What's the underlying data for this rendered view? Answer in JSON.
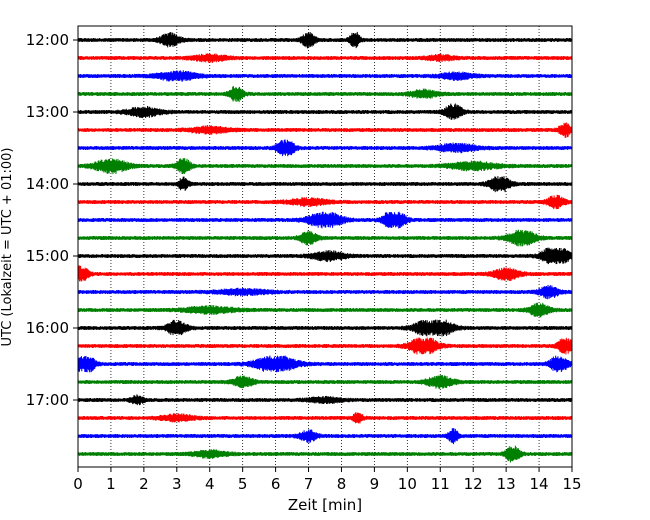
{
  "chart_data": {
    "type": "line",
    "subtype": "helicorder-seismogram",
    "xlabel": "Zeit  [min]",
    "ylabel": "UTC (Lokalzeit = UTC + 01:00)",
    "xlim": [
      0,
      15
    ],
    "x_ticks": [
      0,
      1,
      2,
      3,
      4,
      5,
      6,
      7,
      8,
      9,
      10,
      11,
      12,
      13,
      14,
      15
    ],
    "x_grid": "dotted vertical lines at each minute",
    "y_ticks": [
      "12:00",
      "13:00",
      "14:00",
      "15:00",
      "16:00",
      "17:00"
    ],
    "trace_interval_minutes": 15,
    "trace_colors": [
      "#000000",
      "#ff0000",
      "#0000ff",
      "#008000"
    ],
    "traces": [
      {
        "start": "12:00",
        "color": "#000000",
        "bursts": [
          [
            2.8,
            1.0,
            0.6
          ],
          [
            7.0,
            1.1,
            0.4
          ],
          [
            8.4,
            1.4,
            0.3
          ]
        ]
      },
      {
        "start": "12:15",
        "color": "#ff0000",
        "bursts": [
          [
            4.0,
            0.5,
            1.0
          ],
          [
            11.0,
            0.4,
            0.8
          ]
        ]
      },
      {
        "start": "12:30",
        "color": "#0000ff",
        "bursts": [
          [
            3.0,
            0.7,
            1.2
          ],
          [
            11.5,
            0.5,
            1.0
          ]
        ]
      },
      {
        "start": "12:45",
        "color": "#008000",
        "bursts": [
          [
            4.8,
            1.3,
            0.4
          ],
          [
            10.5,
            0.6,
            0.8
          ]
        ]
      },
      {
        "start": "13:00",
        "color": "#000000",
        "bursts": [
          [
            2.0,
            0.7,
            1.0
          ],
          [
            11.4,
            1.3,
            0.5
          ]
        ]
      },
      {
        "start": "13:15",
        "color": "#ff0000",
        "bursts": [
          [
            4.0,
            0.5,
            1.2
          ],
          [
            14.8,
            1.0,
            0.4
          ]
        ]
      },
      {
        "start": "13:30",
        "color": "#0000ff",
        "bursts": [
          [
            6.3,
            1.6,
            0.5
          ],
          [
            11.5,
            0.6,
            1.2
          ]
        ]
      },
      {
        "start": "13:45",
        "color": "#008000",
        "bursts": [
          [
            1.0,
            1.1,
            1.0
          ],
          [
            3.2,
            1.3,
            0.4
          ],
          [
            12.0,
            0.6,
            1.5
          ]
        ]
      },
      {
        "start": "14:00",
        "color": "#000000",
        "bursts": [
          [
            3.2,
            1.0,
            0.3
          ],
          [
            12.8,
            1.4,
            0.6
          ]
        ]
      },
      {
        "start": "14:15",
        "color": "#ff0000",
        "bursts": [
          [
            7.0,
            0.5,
            1.2
          ],
          [
            14.5,
            1.0,
            0.5
          ]
        ]
      },
      {
        "start": "14:30",
        "color": "#0000ff",
        "bursts": [
          [
            7.5,
            1.3,
            1.0
          ],
          [
            9.6,
            2.0,
            0.6
          ]
        ]
      },
      {
        "start": "14:45",
        "color": "#008000",
        "bursts": [
          [
            7.0,
            1.0,
            0.5
          ],
          [
            13.5,
            1.3,
            0.8
          ]
        ]
      },
      {
        "start": "15:00",
        "color": "#000000",
        "bursts": [
          [
            7.6,
            0.7,
            1.0
          ],
          [
            14.5,
            2.2,
            0.7
          ]
        ]
      },
      {
        "start": "15:15",
        "color": "#ff0000",
        "bursts": [
          [
            0.1,
            1.4,
            0.4
          ],
          [
            13.0,
            0.9,
            0.8
          ]
        ]
      },
      {
        "start": "15:30",
        "color": "#0000ff",
        "bursts": [
          [
            14.3,
            0.9,
            0.6
          ],
          [
            5.0,
            0.4,
            1.5
          ]
        ]
      },
      {
        "start": "15:45",
        "color": "#008000",
        "bursts": [
          [
            4.0,
            0.5,
            1.5
          ],
          [
            14.0,
            1.0,
            0.6
          ]
        ]
      },
      {
        "start": "16:00",
        "color": "#000000",
        "bursts": [
          [
            3.0,
            1.2,
            0.6
          ],
          [
            10.8,
            2.0,
            1.0
          ]
        ]
      },
      {
        "start": "16:15",
        "color": "#ff0000",
        "bursts": [
          [
            10.5,
            1.6,
            0.8
          ],
          [
            14.8,
            1.7,
            0.4
          ]
        ]
      },
      {
        "start": "16:30",
        "color": "#0000ff",
        "bursts": [
          [
            0.2,
            2.2,
            0.5
          ],
          [
            6.0,
            1.4,
            1.2
          ],
          [
            14.6,
            1.5,
            0.5
          ]
        ]
      },
      {
        "start": "16:45",
        "color": "#008000",
        "bursts": [
          [
            5.0,
            0.9,
            0.6
          ],
          [
            11.0,
            0.9,
            0.8
          ]
        ]
      },
      {
        "start": "17:00",
        "color": "#000000",
        "bursts": [
          [
            1.8,
            0.6,
            0.4
          ],
          [
            7.5,
            0.4,
            1.0
          ]
        ]
      },
      {
        "start": "17:15",
        "color": "#ff0000",
        "bursts": [
          [
            8.5,
            0.8,
            0.3
          ],
          [
            3.0,
            0.5,
            1.0
          ]
        ]
      },
      {
        "start": "17:30",
        "color": "#0000ff",
        "bursts": [
          [
            7.0,
            0.9,
            0.5
          ],
          [
            11.4,
            1.1,
            0.3
          ]
        ]
      },
      {
        "start": "17:45",
        "color": "#008000",
        "bursts": [
          [
            13.2,
            1.4,
            0.4
          ],
          [
            4.0,
            0.5,
            1.0
          ]
        ]
      }
    ]
  }
}
